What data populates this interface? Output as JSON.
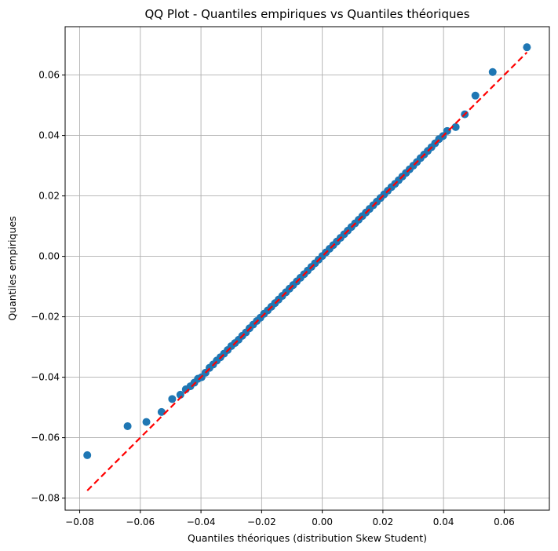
{
  "chart_data": {
    "type": "scatter",
    "title": "QQ Plot - Quantiles empiriques vs Quantiles théoriques",
    "xlabel": "Quantiles théoriques (distribution Skew Student)",
    "ylabel": "Quantiles empiriques",
    "xlim": [
      -0.0848,
      0.0749
    ],
    "ylim": [
      -0.084,
      0.076
    ],
    "xticks": [
      -0.08,
      -0.06,
      -0.04,
      -0.02,
      0.0,
      0.02,
      0.04,
      0.06
    ],
    "xtick_labels": [
      "−0.08",
      "−0.06",
      "−0.04",
      "−0.02",
      "0.00",
      "0.02",
      "0.04",
      "0.06"
    ],
    "yticks": [
      -0.08,
      -0.06,
      -0.04,
      -0.02,
      0.0,
      0.02,
      0.04,
      0.06
    ],
    "ytick_labels": [
      "−0.08",
      "−0.06",
      "−0.04",
      "−0.02",
      "0.00",
      "0.02",
      "0.04",
      "0.06"
    ],
    "grid": true,
    "point_color": "#1f77b4",
    "line_color": "#ff0000",
    "reference_line": {
      "x": [
        -0.0775,
        0.0675
      ],
      "y": [
        -0.0775,
        0.0675
      ],
      "style": "dashed"
    },
    "points": {
      "x": [
        -0.0775,
        -0.0642,
        -0.058,
        -0.053,
        -0.0495,
        -0.0468,
        -0.045,
        -0.0435,
        -0.0422,
        -0.041,
        -0.0398,
        -0.0385,
        -0.0372,
        -0.036,
        -0.0348,
        -0.0336,
        -0.0324,
        -0.0312,
        -0.03,
        -0.0288,
        -0.0276,
        -0.0264,
        -0.0252,
        -0.024,
        -0.0228,
        -0.0216,
        -0.0204,
        -0.0192,
        -0.018,
        -0.0168,
        -0.0156,
        -0.0144,
        -0.0132,
        -0.012,
        -0.0108,
        -0.0096,
        -0.0084,
        -0.0072,
        -0.006,
        -0.0048,
        -0.0036,
        -0.0024,
        -0.0012,
        0.0,
        0.0012,
        0.0024,
        0.0036,
        0.0048,
        0.006,
        0.0072,
        0.0084,
        0.0096,
        0.0108,
        0.012,
        0.0132,
        0.0144,
        0.0156,
        0.0168,
        0.018,
        0.0192,
        0.0204,
        0.0216,
        0.0228,
        0.024,
        0.0252,
        0.0264,
        0.0276,
        0.0288,
        0.03,
        0.0312,
        0.0324,
        0.0336,
        0.0348,
        0.036,
        0.0372,
        0.0385,
        0.0398,
        0.0412,
        0.044,
        0.047,
        0.0505,
        0.0562,
        0.0675
      ],
      "y": [
        -0.0658,
        -0.0562,
        -0.0548,
        -0.0515,
        -0.0472,
        -0.0458,
        -0.044,
        -0.043,
        -0.0418,
        -0.0405,
        -0.04,
        -0.0385,
        -0.0369,
        -0.0358,
        -0.0345,
        -0.0334,
        -0.0322,
        -0.031,
        -0.0297,
        -0.0287,
        -0.0276,
        -0.0263,
        -0.0252,
        -0.0238,
        -0.0226,
        -0.0214,
        -0.0203,
        -0.019,
        -0.0179,
        -0.0167,
        -0.0155,
        -0.0143,
        -0.0131,
        -0.0119,
        -0.0107,
        -0.0095,
        -0.0083,
        -0.0071,
        -0.0059,
        -0.0047,
        -0.0035,
        -0.0023,
        -0.0011,
        0.0001,
        0.0013,
        0.0025,
        0.0037,
        0.0049,
        0.0061,
        0.0073,
        0.0085,
        0.0097,
        0.0109,
        0.0121,
        0.0133,
        0.0145,
        0.0157,
        0.0169,
        0.0181,
        0.0193,
        0.0205,
        0.0217,
        0.0229,
        0.024,
        0.0252,
        0.0264,
        0.0276,
        0.0288,
        0.03,
        0.0312,
        0.0325,
        0.0337,
        0.0349,
        0.0361,
        0.0374,
        0.0388,
        0.0398,
        0.0415,
        0.0428,
        0.047,
        0.0532,
        0.061,
        0.0692
      ]
    }
  }
}
